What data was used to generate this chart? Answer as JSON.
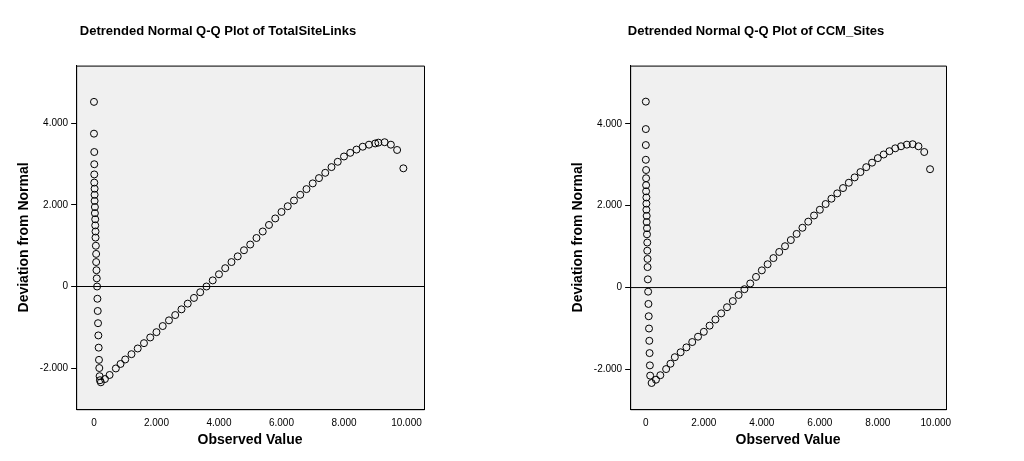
{
  "chart_data": [
    {
      "type": "scatter",
      "title": "Detrended Normal Q-Q Plot of TotalSiteLinks",
      "xlabel": "Observed Value",
      "ylabel": "Deviation from Normal",
      "marker": "circle",
      "grid": false,
      "legend": false,
      "xlim": [
        -570,
        10560
      ],
      "ylim": [
        -3010,
        5420
      ],
      "xticks": [
        0,
        {
          "value": 2000,
          "label": "2.000"
        },
        {
          "value": 4000,
          "label": "4.000"
        },
        {
          "value": 6000,
          "label": "6.000"
        },
        {
          "value": 8000,
          "label": "8.000"
        },
        {
          "value": 10000,
          "label": "10.000"
        }
      ],
      "yticks": [
        {
          "value": -2000,
          "label": "-2.000"
        },
        0,
        {
          "value": 2000,
          "label": "2.000"
        },
        {
          "value": 4000,
          "label": "4.000"
        }
      ],
      "ref_lines": [
        {
          "axis": "y",
          "value": 0,
          "color": "#000000"
        }
      ],
      "series": [
        {
          "color": "#000000",
          "x": [
            0,
            0,
            10,
            10,
            10,
            10,
            20,
            20,
            20,
            30,
            30,
            40,
            40,
            50,
            50,
            60,
            70,
            70,
            80,
            90,
            100,
            110,
            120,
            130,
            140,
            150,
            160,
            170,
            180,
            190,
            220,
            350,
            500,
            700,
            850,
            1000,
            1200,
            1400,
            1600,
            1800,
            2000,
            2200,
            2400,
            2600,
            2800,
            3000,
            3200,
            3400,
            3600,
            3800,
            4000,
            4200,
            4400,
            4600,
            4800,
            5000,
            5200,
            5400,
            5600,
            5800,
            6000,
            6200,
            6400,
            6600,
            6800,
            7000,
            7200,
            7400,
            7600,
            7800,
            8000,
            8200,
            8400,
            8600,
            8800,
            9000,
            9100,
            9300,
            9500,
            9700,
            9900
          ],
          "values": [
            4530,
            3750,
            3300,
            3000,
            2750,
            2550,
            2400,
            2250,
            2100,
            1950,
            1800,
            1650,
            1500,
            1350,
            1200,
            1000,
            800,
            600,
            400,
            200,
            0,
            -300,
            -600,
            -900,
            -1200,
            -1500,
            -1800,
            -2000,
            -2200,
            -2300,
            -2350,
            -2270,
            -2170,
            -2010,
            -1900,
            -1790,
            -1660,
            -1520,
            -1390,
            -1250,
            -1120,
            -970,
            -830,
            -700,
            -560,
            -420,
            -280,
            -140,
            0,
            150,
            300,
            450,
            600,
            740,
            890,
            1030,
            1190,
            1350,
            1510,
            1670,
            1830,
            1970,
            2110,
            2250,
            2390,
            2530,
            2660,
            2790,
            2930,
            3060,
            3190,
            3280,
            3360,
            3430,
            3480,
            3510,
            3530,
            3540,
            3480,
            3350,
            2900
          ]
        }
      ]
    },
    {
      "type": "scatter",
      "title": "Detrended Normal Q-Q Plot of CCM_Sites",
      "xlabel": "Observed Value",
      "ylabel": "Deviation from Normal",
      "marker": "circle",
      "grid": false,
      "legend": false,
      "xlim": [
        -540,
        10350
      ],
      "ylim": [
        -2970,
        5420
      ],
      "xticks": [
        0,
        {
          "value": 2000,
          "label": "2.000"
        },
        {
          "value": 4000,
          "label": "4.000"
        },
        {
          "value": 6000,
          "label": "6.000"
        },
        {
          "value": 8000,
          "label": "8.000"
        },
        {
          "value": 10000,
          "label": "10.000"
        }
      ],
      "yticks": [
        {
          "value": -2000,
          "label": "-2.000"
        },
        0,
        {
          "value": 2000,
          "label": "2.000"
        },
        {
          "value": 4000,
          "label": "4.000"
        }
      ],
      "ref_lines": [
        {
          "axis": "y",
          "value": 0,
          "color": "#000000"
        }
      ],
      "series": [
        {
          "color": "#000000",
          "x": [
            0,
            0,
            0,
            0,
            10,
            10,
            10,
            10,
            20,
            20,
            20,
            30,
            30,
            40,
            40,
            50,
            50,
            60,
            60,
            70,
            80,
            90,
            100,
            110,
            120,
            130,
            140,
            150,
            200,
            350,
            500,
            700,
            850,
            1000,
            1200,
            1400,
            1600,
            1800,
            2000,
            2200,
            2400,
            2600,
            2800,
            3000,
            3200,
            3400,
            3600,
            3800,
            4000,
            4200,
            4400,
            4600,
            4800,
            5000,
            5200,
            5400,
            5600,
            5800,
            6000,
            6200,
            6400,
            6600,
            6800,
            7000,
            7200,
            7400,
            7600,
            7800,
            8000,
            8200,
            8400,
            8600,
            8800,
            9000,
            9200,
            9400,
            9600,
            9800
          ],
          "values": [
            4540,
            3870,
            3480,
            3120,
            2870,
            2670,
            2500,
            2350,
            2200,
            2050,
            1900,
            1750,
            1600,
            1450,
            1300,
            1100,
            900,
            700,
            500,
            200,
            -100,
            -400,
            -700,
            -1000,
            -1300,
            -1600,
            -1900,
            -2150,
            -2330,
            -2250,
            -2140,
            -1990,
            -1860,
            -1700,
            -1580,
            -1460,
            -1330,
            -1200,
            -1080,
            -930,
            -780,
            -630,
            -480,
            -330,
            -180,
            -40,
            100,
            260,
            420,
            570,
            720,
            870,
            1010,
            1160,
            1310,
            1460,
            1610,
            1760,
            1900,
            2040,
            2170,
            2300,
            2430,
            2560,
            2690,
            2820,
            2940,
            3050,
            3160,
            3250,
            3330,
            3400,
            3450,
            3490,
            3500,
            3450,
            3310,
            2890
          ]
        }
      ]
    }
  ]
}
